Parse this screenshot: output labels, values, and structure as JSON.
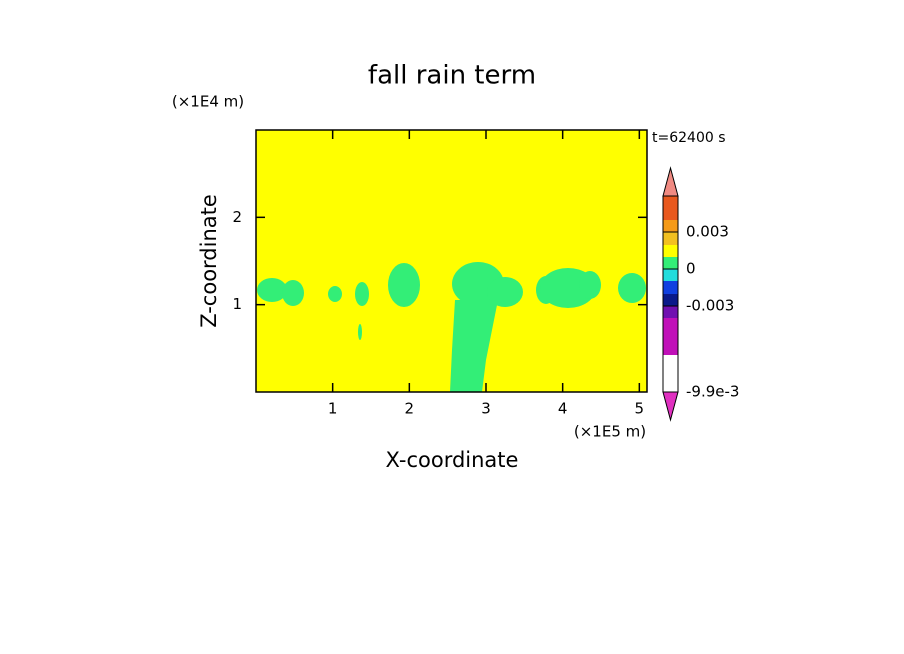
{
  "chart_data": {
    "type": "contour",
    "title": "fall rain term",
    "x_label": "X-coordinate",
    "y_label": "Z-coordinate",
    "x_unit": "(×1E5 m)",
    "y_unit": "(×1E4 m)",
    "time_label": "t=62400 s",
    "xlim": [
      0,
      5.1
    ],
    "ylim": [
      0,
      3
    ],
    "xticks": [
      1,
      2,
      3,
      4,
      5
    ],
    "yticks": [
      1,
      2
    ],
    "colorbar_colors": [
      "#f08a82",
      "#e8581e",
      "#f59a18",
      "#f2c020",
      "#ffff00",
      "#33ee77",
      "#22dddd",
      "#1040e0",
      "#0a1a8a",
      "#7010b0",
      "#c010b8",
      "#e030c0"
    ],
    "colorbar_ticks": [
      0.003,
      0,
      -0.003,
      {
        "value": -0.0099,
        "label": "-9.9e-3"
      }
    ]
  }
}
